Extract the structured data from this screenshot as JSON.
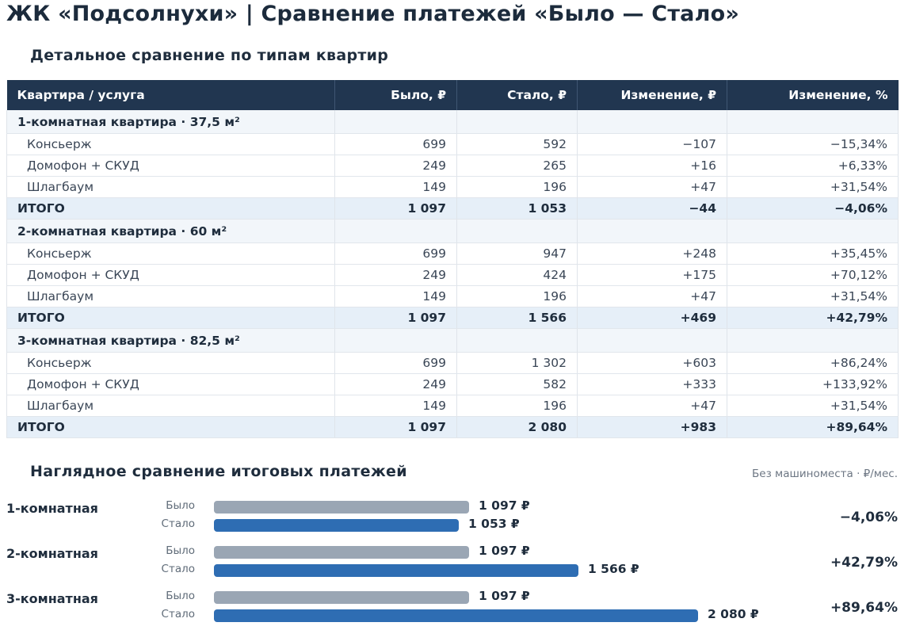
{
  "title": "ЖК «Подсолнухи» | Сравнение платежей «Было — Стало»",
  "detail": {
    "subtitle": "Детальное сравнение по типам квартир",
    "columns": [
      "Квартира / услуга",
      "Было, ₽",
      "Стало, ₽",
      "Изменение, ₽",
      "Изменение, %"
    ],
    "groups": [
      {
        "name": "1-комнатная квартира · 37,5 м²",
        "rows": [
          {
            "service": "Консьерж",
            "before": "699",
            "after": "592",
            "change": "−107",
            "change_pct": "−15,34%"
          },
          {
            "service": "Домофон + СКУД",
            "before": "249",
            "after": "265",
            "change": "+16",
            "change_pct": "+6,33%"
          },
          {
            "service": "Шлагбаум",
            "before": "149",
            "after": "196",
            "change": "+47",
            "change_pct": "+31,54%"
          }
        ],
        "total": {
          "label": "ИТОГО",
          "before": "1 097",
          "after": "1 053",
          "change": "−44",
          "change_pct": "−4,06%"
        }
      },
      {
        "name": "2-комнатная квартира · 60 м²",
        "rows": [
          {
            "service": "Консьерж",
            "before": "699",
            "after": "947",
            "change": "+248",
            "change_pct": "+35,45%"
          },
          {
            "service": "Домофон + СКУД",
            "before": "249",
            "after": "424",
            "change": "+175",
            "change_pct": "+70,12%"
          },
          {
            "service": "Шлагбаум",
            "before": "149",
            "after": "196",
            "change": "+47",
            "change_pct": "+31,54%"
          }
        ],
        "total": {
          "label": "ИТОГО",
          "before": "1 097",
          "after": "1 566",
          "change": "+469",
          "change_pct": "+42,79%"
        }
      },
      {
        "name": "3-комнатная квартира · 82,5 м²",
        "rows": [
          {
            "service": "Консьерж",
            "before": "699",
            "after": "1 302",
            "change": "+603",
            "change_pct": "+86,24%"
          },
          {
            "service": "Домофон + СКУД",
            "before": "249",
            "after": "582",
            "change": "+333",
            "change_pct": "+133,92%"
          },
          {
            "service": "Шлагбаум",
            "before": "149",
            "after": "196",
            "change": "+47",
            "change_pct": "+31,54%"
          }
        ],
        "total": {
          "label": "ИТОГО",
          "before": "1 097",
          "after": "2 080",
          "change": "+983",
          "change_pct": "+89,64%"
        }
      }
    ]
  },
  "visual": {
    "subtitle": "Наглядное сравнение итоговых платежей",
    "note": "Без машиноместа · ₽/мес.",
    "before_label": "Было",
    "after_label": "Стало",
    "bar_colors": {
      "before": "#9aa6b4",
      "after": "#2e6db3"
    }
  },
  "chart_data": {
    "type": "bar",
    "categories": [
      "1-комнатная",
      "2-комнатная",
      "3-комнатная"
    ],
    "series": [
      {
        "name": "Было",
        "values": [
          1097,
          1097,
          1097
        ],
        "labels": [
          "1 097 ₽",
          "1 097 ₽",
          "1 097 ₽"
        ]
      },
      {
        "name": "Стало",
        "values": [
          1053,
          1566,
          2080
        ],
        "labels": [
          "1 053 ₽",
          "1 566 ₽",
          "2 080 ₽"
        ]
      }
    ],
    "change_pct": [
      "−4,06%",
      "+42,79%",
      "+89,64%"
    ],
    "orientation": "horizontal",
    "grid": false
  }
}
